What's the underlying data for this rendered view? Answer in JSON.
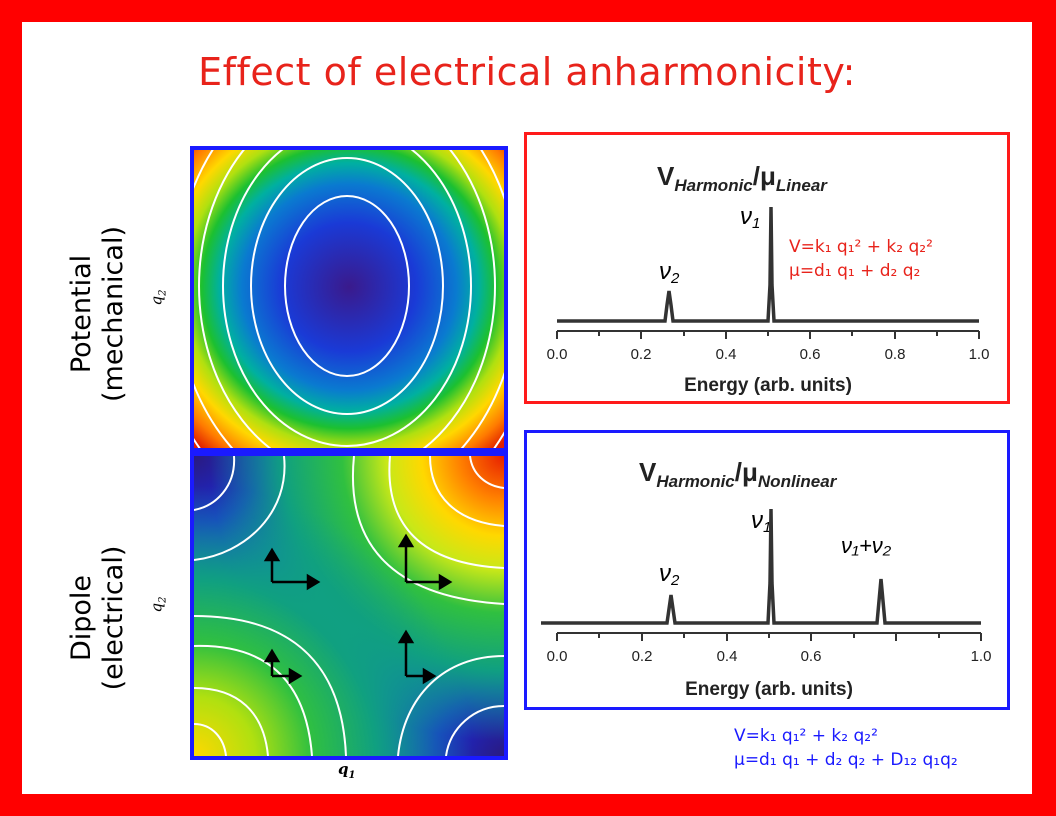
{
  "title": "Effect of electrical anharmonicity:",
  "rows": {
    "potential": {
      "line1": "Potential",
      "line2": "(mechanical)"
    },
    "dipole": {
      "line1": "Dipole",
      "line2": "(electrical)"
    }
  },
  "axes": {
    "q1_label": "q",
    "q1_sub": "1",
    "q2_label": "q",
    "q2_sub": "2"
  },
  "colors": {
    "border": "#ff0000",
    "title": "#e8231b",
    "top_frame": "#ff1a1a",
    "bottom_frame": "#1a1aff",
    "top_eq": "#e8231b",
    "bottom_eq": "#1a1aff",
    "trace": "#333333"
  },
  "icons": {
    "dipole_arrows": "axis-arrow-icon"
  },
  "spectra": [
    {
      "title_main": "V",
      "title_sub1": "Harmonic",
      "title_sep": "/μ",
      "title_sub2": "Linear",
      "xlabel": "Energy (arb. units)",
      "ticks": [
        "0.0",
        "0.2",
        "0.4",
        "0.6",
        "0.8",
        "1.0"
      ],
      "peak_labels": [
        {
          "text": "ν2",
          "main": "ν",
          "sub": "2",
          "x": 0.27
        },
        {
          "text": "ν1",
          "main": "ν",
          "sub": "1",
          "x": 0.5
        }
      ],
      "equation": {
        "line1": "V=k₁ q₁² + k₂ q₂²",
        "line2": "μ=d₁ q₁ + d₂ q₂"
      }
    },
    {
      "title_main": "V",
      "title_sub1": "Harmonic",
      "title_sep": "/μ",
      "title_sub2": "Nonlinear",
      "xlabel": "Energy (arb. units)",
      "ticks": [
        "0.0",
        "0.2",
        "0.4",
        "0.6",
        "1.0"
      ],
      "peak_labels": [
        {
          "text": "ν2",
          "main": "ν",
          "sub": "2",
          "x": 0.27
        },
        {
          "text": "ν1",
          "main": "ν",
          "sub": "1",
          "x": 0.5
        },
        {
          "text": "ν1+ν2",
          "main": "ν₁+ν₂",
          "sub": "",
          "x": 0.77
        }
      ],
      "equation": {
        "line1": "V=k₁ q₁² + k₂ q₂²",
        "line2": "μ=d₁ q₁ + d₂ q₂ + D₁₂ q₁q₂"
      }
    }
  ]
}
